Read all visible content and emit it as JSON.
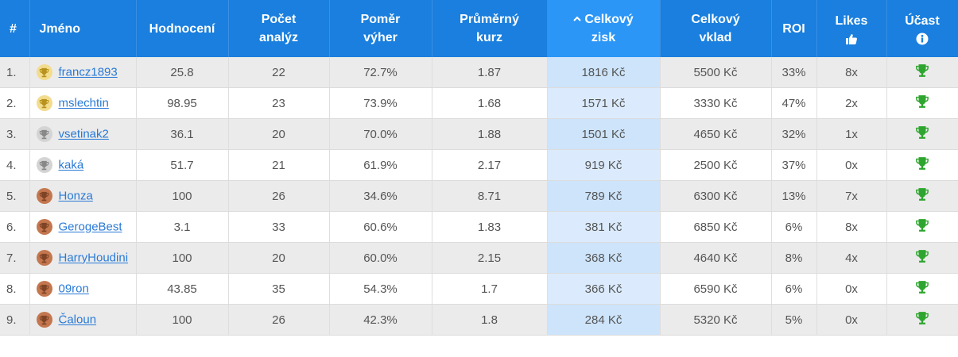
{
  "header": {
    "columns": [
      "#",
      "Jméno",
      "Hodnocení",
      "Počet analýz",
      "Poměr výher",
      "Průměrný kurz",
      "Celkový zisk",
      "Celkový vklad",
      "ROI",
      "Likes",
      "Účast"
    ]
  },
  "table": {
    "rows": [
      {
        "medal": "gold",
        "cells": [
          "1.",
          "francz1893",
          "25.8",
          "22",
          "72.7%",
          "1.87",
          "1816 Kč",
          "5500 Kč",
          "33%",
          "8x"
        ]
      },
      {
        "medal": "gold",
        "cells": [
          "2.",
          "mslechtin",
          "98.95",
          "23",
          "73.9%",
          "1.68",
          "1571 Kč",
          "3330 Kč",
          "47%",
          "2x"
        ]
      },
      {
        "medal": "silver",
        "cells": [
          "3.",
          "vsetinak2",
          "36.1",
          "20",
          "70.0%",
          "1.88",
          "1501 Kč",
          "4650 Kč",
          "32%",
          "1x"
        ]
      },
      {
        "medal": "silver",
        "cells": [
          "4.",
          "kaká",
          "51.7",
          "21",
          "61.9%",
          "2.17",
          "919 Kč",
          "2500 Kč",
          "37%",
          "0x"
        ]
      },
      {
        "medal": "bronze",
        "cells": [
          "5.",
          "Honza",
          "100",
          "26",
          "34.6%",
          "8.71",
          "789 Kč",
          "6300 Kč",
          "13%",
          "7x"
        ]
      },
      {
        "medal": "bronze",
        "cells": [
          "6.",
          "GerogeBest",
          "3.1",
          "33",
          "60.6%",
          "1.83",
          "381 Kč",
          "6850 Kč",
          "6%",
          "8x"
        ]
      },
      {
        "medal": "bronze",
        "cells": [
          "7.",
          "HarryHoudini",
          "100",
          "20",
          "60.0%",
          "2.15",
          "368 Kč",
          "4640 Kč",
          "8%",
          "4x"
        ]
      },
      {
        "medal": "bronze",
        "cells": [
          "8.",
          "09ron",
          "43.85",
          "35",
          "54.3%",
          "1.7",
          "366 Kč",
          "6590 Kč",
          "6%",
          "0x"
        ]
      },
      {
        "medal": "bronze",
        "cells": [
          "9.",
          "Čaloun",
          "100",
          "26",
          "42.3%",
          "1.8",
          "284 Kč",
          "5320 Kč",
          "5%",
          "0x"
        ]
      }
    ]
  }
}
